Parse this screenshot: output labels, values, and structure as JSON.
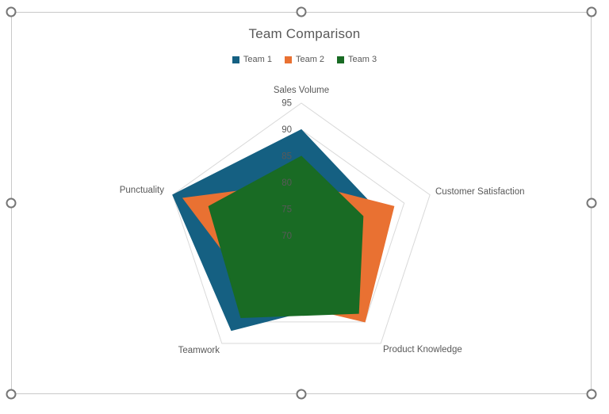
{
  "chart": {
    "title": "Team Comparison",
    "legend": [
      {
        "label": "Team 1",
        "color": "#156082"
      },
      {
        "label": "Team 2",
        "color": "#E97132"
      },
      {
        "label": "Team 3",
        "color": "#196B24"
      }
    ]
  },
  "chart_data": {
    "type": "radar",
    "subtype": "filled",
    "title": "Team Comparison",
    "categories": [
      "Sales Volume",
      "Customer Satisfaction",
      "Product Knowledge",
      "Teamwork",
      "Punctuality"
    ],
    "series": [
      {
        "name": "Team 1",
        "color": "#156082",
        "values": [
          90,
          85,
          85,
          92,
          95
        ]
      },
      {
        "name": "Team 2",
        "color": "#E97132",
        "values": [
          80,
          88,
          90,
          84,
          93
        ]
      },
      {
        "name": "Team 3",
        "color": "#196B24",
        "values": [
          85,
          82,
          88,
          89,
          88
        ]
      }
    ],
    "axis": {
      "min": 70,
      "max": 95,
      "step": 5,
      "tick_labels": [
        "95",
        "90",
        "85",
        "80",
        "75",
        "70"
      ]
    },
    "legend_position": "top",
    "grid": true
  },
  "colors": {
    "text": "#595959",
    "grid": "#D9D9D9",
    "frame": "#C9C9C9",
    "handle": "#767676",
    "background": "#FFFFFF"
  }
}
